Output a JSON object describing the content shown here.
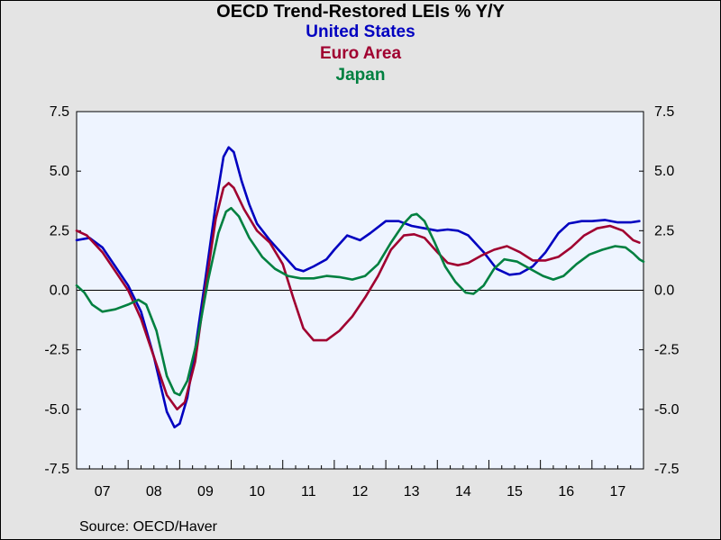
{
  "chart_data": {
    "type": "line",
    "title": "OECD Trend-Restored LEIs % Y/Y",
    "source": "Source:  OECD/Haver",
    "ylim": [
      -7.5,
      7.5
    ],
    "yticks": [
      "7.5",
      "5.0",
      "2.5",
      "0.0",
      "-2.5",
      "-5.0",
      "-7.5"
    ],
    "ytick_values": [
      7.5,
      5.0,
      2.5,
      0.0,
      -2.5,
      -5.0,
      -7.5
    ],
    "xlim": [
      2007.0,
      2018.0
    ],
    "xtick_labels": [
      "07",
      "08",
      "09",
      "10",
      "11",
      "12",
      "13",
      "14",
      "15",
      "16",
      "17"
    ],
    "grid": false,
    "zero_line": true,
    "series": [
      {
        "name": "United States",
        "color": "#0000c0",
        "points": [
          [
            2007.0,
            2.1
          ],
          [
            2007.25,
            2.2
          ],
          [
            2007.5,
            1.8
          ],
          [
            2007.75,
            1.0
          ],
          [
            2008.0,
            0.2
          ],
          [
            2008.25,
            -0.9
          ],
          [
            2008.5,
            -2.8
          ],
          [
            2008.75,
            -5.1
          ],
          [
            2008.9,
            -5.75
          ],
          [
            2009.0,
            -5.6
          ],
          [
            2009.15,
            -4.5
          ],
          [
            2009.3,
            -2.5
          ],
          [
            2009.5,
            0.5
          ],
          [
            2009.7,
            3.6
          ],
          [
            2009.85,
            5.6
          ],
          [
            2009.95,
            6.0
          ],
          [
            2010.05,
            5.8
          ],
          [
            2010.2,
            4.6
          ],
          [
            2010.35,
            3.6
          ],
          [
            2010.5,
            2.8
          ],
          [
            2010.75,
            2.1
          ],
          [
            2011.0,
            1.5
          ],
          [
            2011.25,
            0.9
          ],
          [
            2011.4,
            0.8
          ],
          [
            2011.6,
            1.0
          ],
          [
            2011.85,
            1.3
          ],
          [
            2012.0,
            1.7
          ],
          [
            2012.25,
            2.3
          ],
          [
            2012.5,
            2.1
          ],
          [
            2012.7,
            2.4
          ],
          [
            2013.0,
            2.9
          ],
          [
            2013.25,
            2.9
          ],
          [
            2013.5,
            2.7
          ],
          [
            2013.75,
            2.6
          ],
          [
            2014.0,
            2.5
          ],
          [
            2014.2,
            2.55
          ],
          [
            2014.4,
            2.5
          ],
          [
            2014.6,
            2.3
          ],
          [
            2014.9,
            1.6
          ],
          [
            2015.15,
            0.9
          ],
          [
            2015.4,
            0.65
          ],
          [
            2015.6,
            0.7
          ],
          [
            2015.85,
            1.0
          ],
          [
            2016.1,
            1.6
          ],
          [
            2016.35,
            2.4
          ],
          [
            2016.55,
            2.8
          ],
          [
            2016.8,
            2.9
          ],
          [
            2017.0,
            2.9
          ],
          [
            2017.25,
            2.95
          ],
          [
            2017.5,
            2.85
          ],
          [
            2017.75,
            2.85
          ],
          [
            2017.92,
            2.9
          ]
        ]
      },
      {
        "name": "Euro Area",
        "color": "#a00030",
        "points": [
          [
            2007.0,
            2.5
          ],
          [
            2007.2,
            2.3
          ],
          [
            2007.5,
            1.6
          ],
          [
            2007.75,
            0.8
          ],
          [
            2008.0,
            0.0
          ],
          [
            2008.25,
            -1.2
          ],
          [
            2008.5,
            -2.8
          ],
          [
            2008.75,
            -4.4
          ],
          [
            2008.95,
            -5.0
          ],
          [
            2009.1,
            -4.7
          ],
          [
            2009.3,
            -3.0
          ],
          [
            2009.5,
            0.1
          ],
          [
            2009.7,
            3.0
          ],
          [
            2009.85,
            4.3
          ],
          [
            2009.95,
            4.5
          ],
          [
            2010.05,
            4.3
          ],
          [
            2010.25,
            3.4
          ],
          [
            2010.5,
            2.5
          ],
          [
            2010.75,
            2.0
          ],
          [
            2011.0,
            1.1
          ],
          [
            2011.2,
            -0.3
          ],
          [
            2011.4,
            -1.6
          ],
          [
            2011.6,
            -2.1
          ],
          [
            2011.85,
            -2.1
          ],
          [
            2012.1,
            -1.7
          ],
          [
            2012.35,
            -1.1
          ],
          [
            2012.6,
            -0.3
          ],
          [
            2012.85,
            0.6
          ],
          [
            2013.1,
            1.7
          ],
          [
            2013.35,
            2.3
          ],
          [
            2013.55,
            2.35
          ],
          [
            2013.75,
            2.2
          ],
          [
            2014.0,
            1.6
          ],
          [
            2014.2,
            1.15
          ],
          [
            2014.4,
            1.05
          ],
          [
            2014.6,
            1.15
          ],
          [
            2014.85,
            1.45
          ],
          [
            2015.1,
            1.7
          ],
          [
            2015.35,
            1.85
          ],
          [
            2015.6,
            1.6
          ],
          [
            2015.85,
            1.25
          ],
          [
            2016.1,
            1.25
          ],
          [
            2016.35,
            1.4
          ],
          [
            2016.6,
            1.8
          ],
          [
            2016.85,
            2.3
          ],
          [
            2017.1,
            2.6
          ],
          [
            2017.35,
            2.7
          ],
          [
            2017.6,
            2.5
          ],
          [
            2017.8,
            2.1
          ],
          [
            2017.92,
            2.0
          ]
        ]
      },
      {
        "name": "Japan",
        "color": "#008040",
        "points": [
          [
            2007.0,
            0.2
          ],
          [
            2007.15,
            -0.1
          ],
          [
            2007.3,
            -0.6
          ],
          [
            2007.5,
            -0.9
          ],
          [
            2007.75,
            -0.8
          ],
          [
            2008.0,
            -0.6
          ],
          [
            2008.2,
            -0.4
          ],
          [
            2008.35,
            -0.6
          ],
          [
            2008.55,
            -1.7
          ],
          [
            2008.75,
            -3.6
          ],
          [
            2008.9,
            -4.3
          ],
          [
            2009.0,
            -4.4
          ],
          [
            2009.15,
            -3.8
          ],
          [
            2009.35,
            -2.0
          ],
          [
            2009.55,
            0.4
          ],
          [
            2009.75,
            2.4
          ],
          [
            2009.9,
            3.3
          ],
          [
            2010.0,
            3.45
          ],
          [
            2010.15,
            3.1
          ],
          [
            2010.35,
            2.2
          ],
          [
            2010.6,
            1.4
          ],
          [
            2010.85,
            0.9
          ],
          [
            2011.1,
            0.6
          ],
          [
            2011.35,
            0.5
          ],
          [
            2011.6,
            0.5
          ],
          [
            2011.85,
            0.6
          ],
          [
            2012.1,
            0.55
          ],
          [
            2012.35,
            0.45
          ],
          [
            2012.6,
            0.6
          ],
          [
            2012.85,
            1.1
          ],
          [
            2013.1,
            2.0
          ],
          [
            2013.35,
            2.8
          ],
          [
            2013.5,
            3.15
          ],
          [
            2013.6,
            3.2
          ],
          [
            2013.75,
            2.9
          ],
          [
            2013.95,
            2.0
          ],
          [
            2014.15,
            1.0
          ],
          [
            2014.35,
            0.35
          ],
          [
            2014.55,
            -0.1
          ],
          [
            2014.7,
            -0.15
          ],
          [
            2014.9,
            0.2
          ],
          [
            2015.1,
            0.9
          ],
          [
            2015.3,
            1.3
          ],
          [
            2015.55,
            1.2
          ],
          [
            2015.8,
            0.9
          ],
          [
            2016.05,
            0.6
          ],
          [
            2016.25,
            0.45
          ],
          [
            2016.45,
            0.6
          ],
          [
            2016.7,
            1.1
          ],
          [
            2016.95,
            1.5
          ],
          [
            2017.2,
            1.7
          ],
          [
            2017.45,
            1.85
          ],
          [
            2017.65,
            1.8
          ],
          [
            2017.8,
            1.55
          ],
          [
            2017.92,
            1.3
          ],
          [
            2018.0,
            1.2
          ]
        ]
      }
    ]
  }
}
